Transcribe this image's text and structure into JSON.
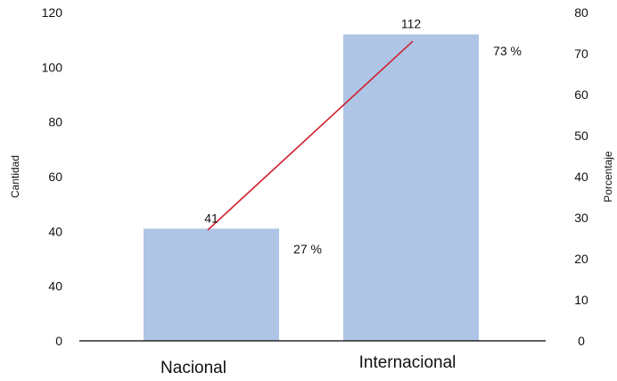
{
  "chart_data": {
    "type": "bar",
    "categories": [
      "Nacional",
      "Internacional"
    ],
    "series": [
      {
        "values": [
          41,
          112
        ],
        "axis": "left",
        "type": "bar",
        "color": "#aec5e6"
      },
      {
        "values": [
          27,
          73
        ],
        "axis": "right",
        "type": "line",
        "color": "#d0202e"
      }
    ],
    "bar_labels": [
      "41",
      "112"
    ],
    "percent_labels": [
      "27 %",
      "73 %"
    ],
    "ylabel": "Cantidad",
    "y2label": "Porcentaje",
    "ylim": [
      0,
      120
    ],
    "y2lim": [
      0,
      80
    ],
    "y_ticks": [
      "0",
      "40",
      "40",
      "60",
      "80",
      "100",
      "120"
    ],
    "y2_ticks": [
      "0",
      "10",
      "20",
      "30",
      "40",
      "50",
      "60",
      "70",
      "80"
    ],
    "grid": false,
    "legend": "none"
  }
}
